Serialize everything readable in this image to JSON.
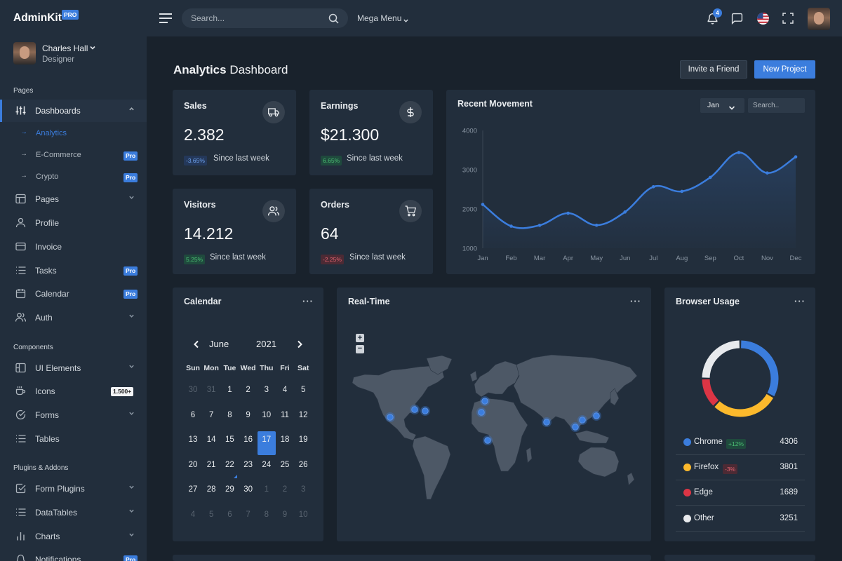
{
  "sidebar": {
    "brand": "AdminKit",
    "brand_badge": "PRO",
    "user": {
      "name": "Charles Hall",
      "role": "Designer"
    },
    "sections": [
      {
        "title": "Pages",
        "items": [
          {
            "label": "Dashboards",
            "icon": "sliders-icon",
            "expanded": true,
            "subitems": [
              {
                "label": "Analytics",
                "active": true
              },
              {
                "label": "E-Commerce",
                "badge": "Pro"
              },
              {
                "label": "Crypto",
                "badge": "Pro"
              }
            ]
          },
          {
            "label": "Pages",
            "icon": "layout-icon",
            "chevron": true
          },
          {
            "label": "Profile",
            "icon": "user-icon"
          },
          {
            "label": "Invoice",
            "icon": "credit-card-icon"
          },
          {
            "label": "Tasks",
            "icon": "list-icon",
            "badge": "Pro"
          },
          {
            "label": "Calendar",
            "icon": "calendar-icon",
            "badge": "Pro"
          },
          {
            "label": "Auth",
            "icon": "users-icon",
            "chevron": true
          }
        ]
      },
      {
        "title": "Components",
        "items": [
          {
            "label": "UI Elements",
            "icon": "grid-icon",
            "chevron": true
          },
          {
            "label": "Icons",
            "icon": "coffee-icon",
            "count": "1.500+"
          },
          {
            "label": "Forms",
            "icon": "check-circle-icon",
            "chevron": true
          },
          {
            "label": "Tables",
            "icon": "list-icon"
          }
        ]
      },
      {
        "title": "Plugins & Addons",
        "items": [
          {
            "label": "Form Plugins",
            "icon": "check-square-icon",
            "chevron": true
          },
          {
            "label": "DataTables",
            "icon": "list-icon",
            "chevron": true
          },
          {
            "label": "Charts",
            "icon": "bar-chart-icon",
            "chevron": true
          },
          {
            "label": "Notifications",
            "icon": "bell-icon",
            "badge": "Pro"
          }
        ]
      }
    ]
  },
  "topbar": {
    "search_placeholder": "Search...",
    "mega_menu": "Mega Menu",
    "notification_count": "4"
  },
  "header": {
    "title_bold": "Analytics",
    "title_rest": "Dashboard",
    "invite_label": "Invite a Friend",
    "new_project_label": "New Project"
  },
  "stats": [
    {
      "title": "Sales",
      "value": "2.382",
      "change": "-3.65%",
      "change_color": "#6ea3f0",
      "since": "Since last week",
      "icon": "truck-icon"
    },
    {
      "title": "Earnings",
      "value": "$21.300",
      "change": "6.65%",
      "change_color": "#4bbf73",
      "since": "Since last week",
      "icon": "dollar-icon"
    },
    {
      "title": "Visitors",
      "value": "14.212",
      "change": "5.25%",
      "change_color": "#4bbf73",
      "since": "Since last week",
      "icon": "users-icon"
    },
    {
      "title": "Orders",
      "value": "64",
      "change": "-2.25%",
      "change_color": "#e0636f",
      "since": "Since last week",
      "icon": "shopping-cart-icon"
    }
  ],
  "movement": {
    "title": "Recent Movement",
    "month_select": "Jan",
    "search_placeholder": "Search.."
  },
  "calendar": {
    "title": "Calendar",
    "month": "June",
    "year": "2021",
    "weekdays": [
      "Sun",
      "Mon",
      "Tue",
      "Wed",
      "Thu",
      "Fri",
      "Sat"
    ],
    "weeks": [
      [
        "30",
        "31",
        "1",
        "2",
        "3",
        "4",
        "5"
      ],
      [
        "6",
        "7",
        "8",
        "9",
        "10",
        "11",
        "12"
      ],
      [
        "13",
        "14",
        "15",
        "16",
        "17",
        "18",
        "19"
      ],
      [
        "20",
        "21",
        "22",
        "23",
        "24",
        "25",
        "26"
      ],
      [
        "27",
        "28",
        "29",
        "30",
        "1",
        "2",
        "3"
      ],
      [
        "4",
        "5",
        "6",
        "7",
        "8",
        "9",
        "10"
      ]
    ],
    "selected": "17",
    "today": "22"
  },
  "realtime": {
    "title": "Real-Time",
    "zoom_in": "+",
    "zoom_out": "−"
  },
  "browser": {
    "title": "Browser Usage",
    "items": [
      {
        "name": "Chrome",
        "value": "4306",
        "change": "+12%",
        "color": "#3b7ddd"
      },
      {
        "name": "Firefox",
        "value": "3801",
        "change": "-3%",
        "color": "#fcb92c"
      },
      {
        "name": "Edge",
        "value": "1689",
        "color": "#dc3545"
      },
      {
        "name": "Other",
        "value": "3251",
        "color": "#e8eaed"
      }
    ]
  },
  "chart_data": [
    {
      "type": "line",
      "categories": [
        "Jan",
        "Feb",
        "Mar",
        "Apr",
        "May",
        "Jun",
        "Jul",
        "Aug",
        "Sep",
        "Oct",
        "Nov",
        "Dec"
      ],
      "series": [
        {
          "values": [
            2115,
            1562,
            1584,
            1892,
            1587,
            1923,
            2566,
            2448,
            2805,
            3438,
            2917,
            3327
          ]
        }
      ],
      "ylim": [
        1000,
        4000
      ],
      "yticks": [
        "1000",
        "2000",
        "3000",
        "4000"
      ],
      "color": "#3b7ddd",
      "grid": false
    },
    {
      "type": "pie",
      "donut": true,
      "categories": [
        "Chrome",
        "Firefox",
        "Edge",
        "Other"
      ],
      "values": [
        4306,
        3801,
        1689,
        3251
      ],
      "colors": [
        "#3b7ddd",
        "#fcb92c",
        "#dc3545",
        "#e8eaed"
      ]
    }
  ]
}
